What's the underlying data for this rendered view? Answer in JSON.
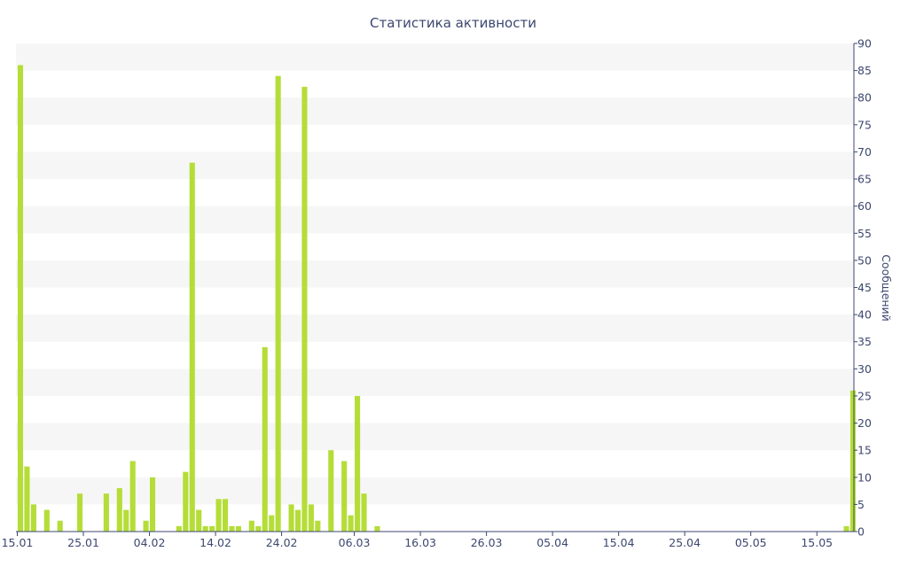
{
  "chart_data": {
    "type": "bar",
    "title": "Статистика активности",
    "xlabel": "",
    "ylabel": "Сообщений",
    "y_axis_side": "right",
    "ylim": [
      0,
      90
    ],
    "y_ticks": [
      0,
      5,
      10,
      15,
      20,
      25,
      30,
      35,
      40,
      45,
      50,
      55,
      60,
      65,
      70,
      75,
      80,
      85,
      90
    ],
    "x_range": [
      "2024-01-15",
      "2024-05-20"
    ],
    "x_ticks": [
      {
        "date": "2024-01-15",
        "label": "15.01"
      },
      {
        "date": "2024-01-25",
        "label": "25.01"
      },
      {
        "date": "2024-02-04",
        "label": "04.02"
      },
      {
        "date": "2024-02-14",
        "label": "14.02"
      },
      {
        "date": "2024-02-24",
        "label": "24.02"
      },
      {
        "date": "2024-03-06",
        "label": "06.03"
      },
      {
        "date": "2024-03-16",
        "label": "16.03"
      },
      {
        "date": "2024-03-26",
        "label": "26.03"
      },
      {
        "date": "2024-04-05",
        "label": "05.04"
      },
      {
        "date": "2024-04-15",
        "label": "15.04"
      },
      {
        "date": "2024-04-25",
        "label": "25.04"
      },
      {
        "date": "2024-05-05",
        "label": "05.05"
      },
      {
        "date": "2024-05-15",
        "label": "15.05"
      }
    ],
    "grid": "alternating horizontal bands",
    "bar_color": "#b5dd38",
    "text_color": "#3c4770",
    "points": [
      {
        "date": "2024-01-15",
        "value": 86
      },
      {
        "date": "2024-01-16",
        "value": 12
      },
      {
        "date": "2024-01-17",
        "value": 5
      },
      {
        "date": "2024-01-19",
        "value": 4
      },
      {
        "date": "2024-01-21",
        "value": 2
      },
      {
        "date": "2024-01-24",
        "value": 7
      },
      {
        "date": "2024-01-28",
        "value": 7
      },
      {
        "date": "2024-01-30",
        "value": 8
      },
      {
        "date": "2024-01-31",
        "value": 4
      },
      {
        "date": "2024-02-01",
        "value": 13
      },
      {
        "date": "2024-02-03",
        "value": 2
      },
      {
        "date": "2024-02-04",
        "value": 10
      },
      {
        "date": "2024-02-08",
        "value": 1
      },
      {
        "date": "2024-02-09",
        "value": 11
      },
      {
        "date": "2024-02-10",
        "value": 68
      },
      {
        "date": "2024-02-11",
        "value": 4
      },
      {
        "date": "2024-02-12",
        "value": 1
      },
      {
        "date": "2024-02-13",
        "value": 1
      },
      {
        "date": "2024-02-14",
        "value": 6
      },
      {
        "date": "2024-02-15",
        "value": 6
      },
      {
        "date": "2024-02-16",
        "value": 1
      },
      {
        "date": "2024-02-17",
        "value": 1
      },
      {
        "date": "2024-02-19",
        "value": 2
      },
      {
        "date": "2024-02-20",
        "value": 1
      },
      {
        "date": "2024-02-21",
        "value": 34
      },
      {
        "date": "2024-02-22",
        "value": 3
      },
      {
        "date": "2024-02-23",
        "value": 84
      },
      {
        "date": "2024-02-25",
        "value": 5
      },
      {
        "date": "2024-02-26",
        "value": 4
      },
      {
        "date": "2024-02-27",
        "value": 82
      },
      {
        "date": "2024-02-28",
        "value": 5
      },
      {
        "date": "2024-02-29",
        "value": 2
      },
      {
        "date": "2024-03-02",
        "value": 15
      },
      {
        "date": "2024-03-04",
        "value": 13
      },
      {
        "date": "2024-03-05",
        "value": 3
      },
      {
        "date": "2024-03-06",
        "value": 25
      },
      {
        "date": "2024-03-07",
        "value": 7
      },
      {
        "date": "2024-03-09",
        "value": 1
      },
      {
        "date": "2024-05-19",
        "value": 1
      },
      {
        "date": "2024-05-20",
        "value": 26
      }
    ]
  }
}
